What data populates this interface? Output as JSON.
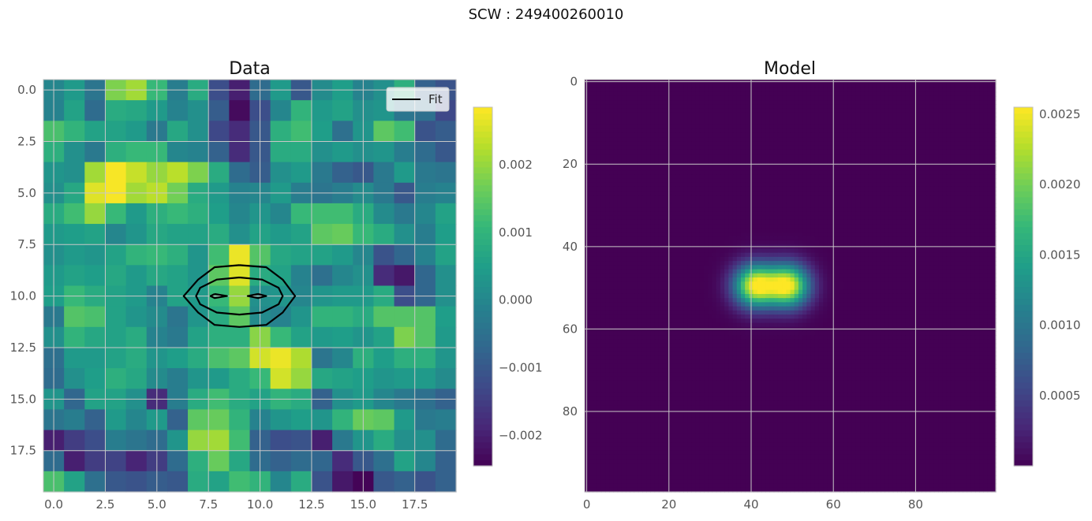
{
  "figure": {
    "suptitle": "SCW : 249400260010"
  },
  "chart_data": [
    {
      "type": "heatmap",
      "title": "Data",
      "nx": 20,
      "ny": 20,
      "xlim": [
        -0.5,
        19.5
      ],
      "ylim": [
        19.5,
        -0.5
      ],
      "xticks": [
        0.0,
        2.5,
        5.0,
        7.5,
        10.0,
        12.5,
        15.0,
        17.5
      ],
      "yticks": [
        0.0,
        2.5,
        5.0,
        7.5,
        10.0,
        12.5,
        15.0,
        17.5
      ],
      "tick_format": "one_decimal",
      "colormap": "viridis",
      "vmin": -0.00245,
      "vmax": 0.00285,
      "colorbar_ticks": [
        -0.002,
        -0.001,
        0.0,
        0.001,
        0.002
      ],
      "colorbar_tick_labels": [
        "−0.002",
        "−0.001",
        "0.000",
        "0.001",
        "0.002"
      ],
      "grid": true,
      "legend": {
        "placement": "upper-right",
        "entries": [
          "Fit"
        ]
      },
      "contour_color": "#000000",
      "contours": [
        [
          [
            9.0,
            8.5
          ],
          [
            10.3,
            8.6
          ],
          [
            11.1,
            9.2
          ],
          [
            11.7,
            10.0
          ],
          [
            11.1,
            10.8
          ],
          [
            10.3,
            11.4
          ],
          [
            9.0,
            11.5
          ],
          [
            7.8,
            11.4
          ],
          [
            7.0,
            10.8
          ],
          [
            6.3,
            10.0
          ],
          [
            7.0,
            9.2
          ],
          [
            7.8,
            8.6
          ],
          [
            9.0,
            8.5
          ]
        ],
        [
          [
            9.0,
            9.1
          ],
          [
            10.1,
            9.2
          ],
          [
            10.9,
            9.6
          ],
          [
            11.1,
            10.0
          ],
          [
            10.9,
            10.4
          ],
          [
            10.1,
            10.8
          ],
          [
            9.0,
            10.9
          ],
          [
            7.9,
            10.8
          ],
          [
            7.1,
            10.4
          ],
          [
            6.9,
            10.0
          ],
          [
            7.1,
            9.6
          ],
          [
            7.9,
            9.2
          ],
          [
            9.0,
            9.1
          ]
        ],
        [
          [
            7.8,
            9.9
          ],
          [
            8.4,
            10.0
          ],
          [
            7.8,
            10.1
          ],
          [
            7.6,
            10.0
          ],
          [
            7.8,
            9.9
          ]
        ],
        [
          [
            9.9,
            9.9
          ],
          [
            10.3,
            10.0
          ],
          [
            9.9,
            10.1
          ],
          [
            9.4,
            10.0
          ],
          [
            9.9,
            9.9
          ]
        ]
      ],
      "values": [
        [
          0.0,
          0.0004,
          -0.0004,
          0.0018,
          0.0021,
          0.0011,
          -0.0002,
          0.0008,
          -0.0012,
          -0.002,
          -0.0006,
          0.0004,
          -0.001,
          0.0001,
          0.0005,
          -0.0001,
          0.0002,
          0.0009,
          -0.0008,
          -0.0011
        ],
        [
          -0.0001,
          0.0006,
          -0.0006,
          0.0008,
          0.0007,
          0.0004,
          -0.0001,
          0.0002,
          -0.0009,
          -0.0023,
          -0.0012,
          0.0,
          0.001,
          0.0004,
          0.0006,
          0.0002,
          0.0003,
          -0.0004,
          -0.0005,
          -0.0013
        ],
        [
          0.0013,
          0.001,
          0.0006,
          0.0006,
          0.0004,
          -0.0003,
          0.0007,
          0.0002,
          -0.0013,
          -0.0018,
          -0.001,
          0.0009,
          0.0012,
          0.0005,
          -0.0005,
          0.0003,
          0.0015,
          0.0012,
          -0.0011,
          -0.0009
        ],
        [
          0.0009,
          0.0002,
          -0.0003,
          0.0009,
          0.0011,
          0.0011,
          0.0,
          -0.0001,
          -0.0008,
          -0.0018,
          -0.001,
          0.0008,
          0.0008,
          0.0002,
          0.0004,
          0.0002,
          0.0003,
          -0.0002,
          -0.0006,
          -0.001
        ],
        [
          0.0003,
          0.0002,
          0.0021,
          0.0028,
          0.0024,
          0.002,
          0.0023,
          0.0018,
          0.0008,
          -0.0006,
          -0.0009,
          0.0002,
          0.0004,
          -0.0003,
          -0.0008,
          -0.001,
          -0.0003,
          0.0004,
          -0.0003,
          -0.0004
        ],
        [
          0.0002,
          0.0007,
          0.0026,
          0.0028,
          0.0021,
          0.0023,
          0.0017,
          0.0008,
          0.0004,
          -0.0001,
          0.0,
          0.0004,
          -0.0002,
          -0.0004,
          -0.0002,
          0.0001,
          -0.0003,
          -0.001,
          -0.0002,
          -0.0001
        ],
        [
          0.0008,
          0.0012,
          0.002,
          0.0011,
          0.0004,
          0.0009,
          0.0011,
          0.0009,
          0.0005,
          0.0,
          0.0003,
          0.0,
          0.0011,
          0.0012,
          0.0012,
          0.0008,
          0.0001,
          -0.0003,
          0.0,
          0.0006
        ],
        [
          0.0004,
          0.0005,
          0.0006,
          0.0,
          0.0003,
          0.0007,
          0.0006,
          0.0006,
          0.0008,
          0.0002,
          0.0006,
          0.0004,
          0.0006,
          0.0015,
          0.0016,
          0.0011,
          0.0008,
          0.0002,
          -0.0002,
          0.0005
        ],
        [
          0.0002,
          0.0004,
          0.0003,
          0.0006,
          0.001,
          0.0011,
          0.0009,
          0.0003,
          0.0012,
          0.0027,
          0.0014,
          0.0007,
          0.0006,
          0.0006,
          0.0004,
          0.0,
          -0.0011,
          -0.0007,
          -0.0001,
          0.0006
        ],
        [
          0.0004,
          0.0006,
          0.0005,
          0.0007,
          0.0004,
          0.0007,
          0.0006,
          0.0003,
          0.0015,
          0.0026,
          0.0008,
          0.0006,
          -0.0001,
          -0.0005,
          0.0,
          0.0002,
          -0.0018,
          -0.0021,
          -0.0007,
          0.0002
        ],
        [
          0.0005,
          0.0011,
          0.0008,
          0.0006,
          0.0004,
          -0.0001,
          0.0006,
          0.0004,
          0.0011,
          0.002,
          0.0002,
          0.0003,
          0.0,
          0.0003,
          0.0004,
          0.0004,
          0.0008,
          -0.0012,
          -0.0007,
          0.0002
        ],
        [
          -0.0003,
          0.0014,
          0.0013,
          0.0006,
          0.0003,
          0.0001,
          -0.0004,
          0.0003,
          0.0008,
          0.0015,
          0.0001,
          -0.0001,
          0.0003,
          0.001,
          0.001,
          0.0008,
          0.0014,
          0.0014,
          0.0014,
          0.0005
        ],
        [
          0.0002,
          0.001,
          0.0007,
          0.0006,
          0.0008,
          -0.0001,
          -0.0003,
          0.0006,
          0.0009,
          0.0009,
          0.0019,
          0.0011,
          0.0006,
          0.0004,
          0.0005,
          0.0003,
          0.0006,
          0.0018,
          0.0014,
          0.0004
        ],
        [
          -0.0005,
          0.0004,
          0.0004,
          0.0006,
          0.0008,
          0.0003,
          0.0005,
          0.0008,
          0.0013,
          0.0015,
          0.0025,
          0.0027,
          0.0022,
          -0.0004,
          0.0,
          0.0009,
          0.0005,
          0.0009,
          0.0009,
          0.0003
        ],
        [
          -0.0006,
          0.0002,
          0.0005,
          0.0009,
          0.0007,
          0.0001,
          -0.0002,
          0.0003,
          0.0004,
          0.0008,
          0.0011,
          0.0025,
          0.002,
          0.0007,
          0.0006,
          0.0005,
          0.0003,
          0.0004,
          0.0004,
          0.0001
        ],
        [
          0.0003,
          -0.0007,
          0.0006,
          0.0006,
          0.0002,
          -0.0018,
          -0.0002,
          0.0008,
          0.0012,
          0.0008,
          0.0006,
          0.001,
          0.0008,
          -0.0008,
          0.0002,
          0.0004,
          0.0,
          -0.0003,
          -0.0005,
          -0.0008
        ],
        [
          -0.0004,
          -0.0002,
          -0.0008,
          0.0004,
          0.0,
          0.0004,
          -0.0008,
          0.0015,
          0.0016,
          0.001,
          -0.0001,
          0.0003,
          0.0005,
          0.0003,
          0.001,
          0.0016,
          0.0015,
          0.0004,
          -0.0003,
          -0.0002
        ],
        [
          -0.002,
          -0.0015,
          -0.0012,
          -0.0002,
          -0.0004,
          -0.0006,
          0.0003,
          0.002,
          0.0021,
          0.0012,
          -0.0008,
          -0.0012,
          -0.0011,
          -0.002,
          -0.0003,
          0.0003,
          0.0008,
          0.0002,
          0.0002,
          -0.0006
        ],
        [
          -0.0006,
          -0.002,
          -0.0015,
          -0.0014,
          -0.0019,
          -0.0015,
          -0.0006,
          0.0009,
          0.0016,
          0.0007,
          -0.0006,
          -0.0008,
          -0.0006,
          -0.0007,
          -0.0018,
          -0.001,
          -0.0005,
          0.0006,
          0.0,
          -0.0008
        ],
        [
          0.0013,
          0.0006,
          -0.0005,
          -0.001,
          -0.0011,
          -0.0009,
          -0.001,
          0.0008,
          0.0006,
          0.0012,
          0.001,
          0.0,
          0.0008,
          -0.0011,
          -0.0021,
          -0.0024,
          -0.001,
          -0.0008,
          -0.0011,
          -0.0008
        ]
      ]
    },
    {
      "type": "heatmap",
      "title": "Model",
      "nx": 100,
      "ny": 100,
      "xlim": [
        -0.5,
        99.5
      ],
      "ylim": [
        99.5,
        -0.5
      ],
      "xticks": [
        0,
        20,
        40,
        60,
        80
      ],
      "yticks": [
        0,
        20,
        40,
        60,
        80
      ],
      "tick_format": "integer",
      "colormap": "viridis",
      "vmin": 0.0,
      "vmax": 0.00255,
      "colorbar_ticks": [
        0.0005,
        0.001,
        0.0015,
        0.002,
        0.0025
      ],
      "colorbar_tick_labels": [
        "0.0005",
        "0.0010",
        "0.0015",
        "0.0020",
        "0.0025"
      ],
      "grid": true,
      "model": {
        "amplitude": 0.0025,
        "sources": [
          {
            "x": 41,
            "y": 49.5
          },
          {
            "x": 49,
            "y": 49.5
          }
        ],
        "sigma_x": 3.6,
        "sigma_y": 3.6
      }
    }
  ]
}
